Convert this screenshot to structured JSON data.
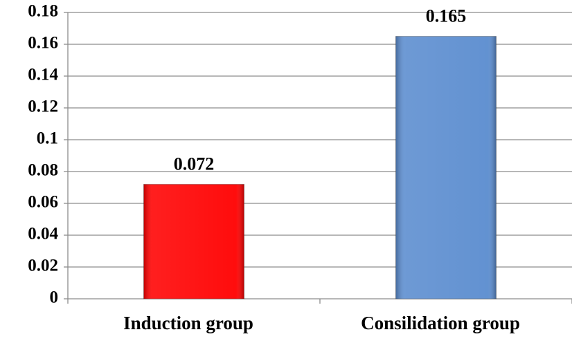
{
  "chart_data": {
    "type": "bar",
    "categories": [
      "Induction group",
      "Consilidation group"
    ],
    "values": [
      0.072,
      0.165
    ],
    "colors": [
      "#ff0000",
      "#5a8ccf"
    ],
    "ylim": [
      0,
      0.18
    ],
    "yticks": [
      0,
      0.02,
      0.04,
      0.06,
      0.08,
      0.1,
      0.12,
      0.14,
      0.16,
      0.18
    ],
    "grid": true
  }
}
